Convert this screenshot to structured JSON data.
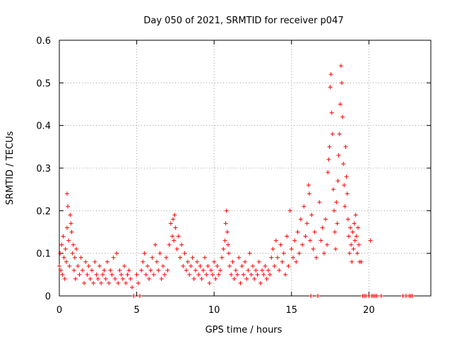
{
  "chart_data": {
    "type": "scatter",
    "title": "Day 050 of 2021, SRMTID for receiver p047",
    "xlabel": "GPS time / hours",
    "ylabel": "SRMTID / TECUs",
    "xlim": [
      0,
      24
    ],
    "ylim": [
      0,
      0.6
    ],
    "x_ticks": [
      0,
      5,
      10,
      15,
      20
    ],
    "y_ticks": [
      0,
      0.1,
      0.2,
      0.3,
      0.4,
      0.5,
      0.6
    ],
    "x_tick_labels": [
      "0",
      "5",
      "10",
      "15",
      "20"
    ],
    "y_tick_labels": [
      "0",
      "0.1",
      "0.2",
      "0.3",
      "0.4",
      "0.5",
      "0.6"
    ],
    "grid": true,
    "marker": "+",
    "color": "#ff0000",
    "series": [
      {
        "name": "SRMTID",
        "points": [
          [
            0.0,
            0.07
          ],
          [
            0.05,
            0.1
          ],
          [
            0.1,
            0.06
          ],
          [
            0.15,
            0.12
          ],
          [
            0.2,
            0.05
          ],
          [
            0.25,
            0.14
          ],
          [
            0.3,
            0.09
          ],
          [
            0.35,
            0.04
          ],
          [
            0.4,
            0.11
          ],
          [
            0.45,
            0.08
          ],
          [
            0.5,
            0.16
          ],
          [
            0.5,
            0.24
          ],
          [
            0.55,
            0.21
          ],
          [
            0.6,
            0.13
          ],
          [
            0.65,
            0.07
          ],
          [
            0.7,
            0.19
          ],
          [
            0.75,
            0.17
          ],
          [
            0.8,
            0.15
          ],
          [
            0.85,
            0.1
          ],
          [
            0.9,
            0.12
          ],
          [
            0.95,
            0.06
          ],
          [
            1.0,
            0.09
          ],
          [
            1.05,
            0.04
          ],
          [
            1.1,
            0.11
          ],
          [
            1.2,
            0.07
          ],
          [
            1.3,
            0.05
          ],
          [
            1.4,
            0.09
          ],
          [
            1.5,
            0.06
          ],
          [
            1.6,
            0.03
          ],
          [
            1.7,
            0.08
          ],
          [
            1.8,
            0.05
          ],
          [
            1.9,
            0.07
          ],
          [
            2.0,
            0.04
          ],
          [
            2.1,
            0.06
          ],
          [
            2.2,
            0.03
          ],
          [
            2.3,
            0.08
          ],
          [
            2.4,
            0.05
          ],
          [
            2.5,
            0.04
          ],
          [
            2.6,
            0.07
          ],
          [
            2.7,
            0.03
          ],
          [
            2.8,
            0.05
          ],
          [
            2.9,
            0.06
          ],
          [
            3.0,
            0.04
          ],
          [
            3.1,
            0.08
          ],
          [
            3.2,
            0.03
          ],
          [
            3.3,
            0.06
          ],
          [
            3.4,
            0.05
          ],
          [
            3.5,
            0.09
          ],
          [
            3.6,
            0.04
          ],
          [
            3.7,
            0.1
          ],
          [
            3.8,
            0.03
          ],
          [
            3.9,
            0.06
          ],
          [
            4.0,
            0.05
          ],
          [
            4.1,
            0.04
          ],
          [
            4.2,
            0.07
          ],
          [
            4.3,
            0.03
          ],
          [
            4.4,
            0.05
          ],
          [
            4.5,
            0.06
          ],
          [
            4.6,
            0.04
          ],
          [
            4.7,
            0.02
          ],
          [
            4.8,
            0.0
          ],
          [
            5.0,
            0.05
          ],
          [
            5.1,
            0.03
          ],
          [
            5.2,
            0.0
          ],
          [
            5.3,
            0.06
          ],
          [
            5.4,
            0.08
          ],
          [
            5.5,
            0.1
          ],
          [
            5.6,
            0.05
          ],
          [
            5.7,
            0.07
          ],
          [
            5.8,
            0.04
          ],
          [
            5.9,
            0.06
          ],
          [
            6.0,
            0.09
          ],
          [
            6.1,
            0.05
          ],
          [
            6.2,
            0.12
          ],
          [
            6.3,
            0.08
          ],
          [
            6.4,
            0.06
          ],
          [
            6.5,
            0.1
          ],
          [
            6.6,
            0.04
          ],
          [
            6.7,
            0.07
          ],
          [
            6.8,
            0.05
          ],
          [
            6.9,
            0.09
          ],
          [
            7.0,
            0.06
          ],
          [
            7.1,
            0.12
          ],
          [
            7.2,
            0.17
          ],
          [
            7.3,
            0.14
          ],
          [
            7.35,
            0.18
          ],
          [
            7.4,
            0.13
          ],
          [
            7.45,
            0.19
          ],
          [
            7.5,
            0.16
          ],
          [
            7.6,
            0.11
          ],
          [
            7.7,
            0.14
          ],
          [
            7.8,
            0.09
          ],
          [
            7.9,
            0.12
          ],
          [
            8.0,
            0.07
          ],
          [
            8.1,
            0.1
          ],
          [
            8.2,
            0.06
          ],
          [
            8.3,
            0.08
          ],
          [
            8.4,
            0.05
          ],
          [
            8.5,
            0.07
          ],
          [
            8.6,
            0.09
          ],
          [
            8.7,
            0.04
          ],
          [
            8.8,
            0.06
          ],
          [
            8.9,
            0.08
          ],
          [
            9.0,
            0.05
          ],
          [
            9.1,
            0.07
          ],
          [
            9.2,
            0.04
          ],
          [
            9.3,
            0.06
          ],
          [
            9.4,
            0.09
          ],
          [
            9.5,
            0.05
          ],
          [
            9.6,
            0.07
          ],
          [
            9.7,
            0.03
          ],
          [
            9.8,
            0.06
          ],
          [
            9.9,
            0.05
          ],
          [
            10.0,
            0.08
          ],
          [
            10.1,
            0.04
          ],
          [
            10.2,
            0.07
          ],
          [
            10.3,
            0.05
          ],
          [
            10.4,
            0.06
          ],
          [
            10.5,
            0.09
          ],
          [
            10.6,
            0.11
          ],
          [
            10.7,
            0.13
          ],
          [
            10.75,
            0.17
          ],
          [
            10.8,
            0.2
          ],
          [
            10.85,
            0.15
          ],
          [
            10.9,
            0.12
          ],
          [
            10.95,
            0.1
          ],
          [
            11.0,
            0.07
          ],
          [
            11.1,
            0.05
          ],
          [
            11.2,
            0.08
          ],
          [
            11.3,
            0.04
          ],
          [
            11.4,
            0.06
          ],
          [
            11.5,
            0.05
          ],
          [
            11.6,
            0.09
          ],
          [
            11.7,
            0.03
          ],
          [
            11.8,
            0.07
          ],
          [
            11.9,
            0.05
          ],
          [
            12.0,
            0.08
          ],
          [
            12.1,
            0.04
          ],
          [
            12.2,
            0.06
          ],
          [
            12.3,
            0.1
          ],
          [
            12.4,
            0.05
          ],
          [
            12.5,
            0.07
          ],
          [
            12.6,
            0.04
          ],
          [
            12.7,
            0.06
          ],
          [
            12.8,
            0.05
          ],
          [
            12.9,
            0.08
          ],
          [
            13.0,
            0.03
          ],
          [
            13.1,
            0.06
          ],
          [
            13.2,
            0.05
          ],
          [
            13.3,
            0.07
          ],
          [
            13.4,
            0.04
          ],
          [
            13.5,
            0.06
          ],
          [
            13.6,
            0.05
          ],
          [
            13.7,
            0.09
          ],
          [
            13.8,
            0.11
          ],
          [
            13.9,
            0.07
          ],
          [
            14.0,
            0.13
          ],
          [
            14.1,
            0.09
          ],
          [
            14.2,
            0.06
          ],
          [
            14.3,
            0.12
          ],
          [
            14.4,
            0.08
          ],
          [
            14.5,
            0.1
          ],
          [
            14.6,
            0.05
          ],
          [
            14.7,
            0.14
          ],
          [
            14.8,
            0.07
          ],
          [
            14.9,
            0.2
          ],
          [
            15.0,
            0.11
          ],
          [
            15.1,
            0.09
          ],
          [
            15.2,
            0.13
          ],
          [
            15.3,
            0.08
          ],
          [
            15.4,
            0.15
          ],
          [
            15.5,
            0.1
          ],
          [
            15.6,
            0.18
          ],
          [
            15.7,
            0.12
          ],
          [
            15.8,
            0.21
          ],
          [
            15.9,
            0.14
          ],
          [
            16.0,
            0.17
          ],
          [
            16.1,
            0.26
          ],
          [
            16.15,
            0.24
          ],
          [
            16.2,
            0.13
          ],
          [
            16.25,
            0.0
          ],
          [
            16.3,
            0.19
          ],
          [
            16.4,
            0.11
          ],
          [
            16.5,
            0.15
          ],
          [
            16.6,
            0.09
          ],
          [
            16.7,
            0.0
          ],
          [
            16.8,
            0.22
          ],
          [
            16.9,
            0.13
          ],
          [
            17.0,
            0.16
          ],
          [
            17.1,
            0.1
          ],
          [
            17.2,
            0.18
          ],
          [
            17.3,
            0.12
          ],
          [
            17.35,
            0.29
          ],
          [
            17.4,
            0.32
          ],
          [
            17.45,
            0.35
          ],
          [
            17.5,
            0.49
          ],
          [
            17.55,
            0.52
          ],
          [
            17.6,
            0.43
          ],
          [
            17.65,
            0.38
          ],
          [
            17.7,
            0.25
          ],
          [
            17.75,
            0.2
          ],
          [
            17.8,
            0.15
          ],
          [
            17.85,
            0.11
          ],
          [
            17.9,
            0.22
          ],
          [
            17.95,
            0.17
          ],
          [
            18.0,
            0.27
          ],
          [
            18.05,
            0.33
          ],
          [
            18.1,
            0.38
          ],
          [
            18.15,
            0.45
          ],
          [
            18.2,
            0.54
          ],
          [
            18.25,
            0.5
          ],
          [
            18.3,
            0.42
          ],
          [
            18.35,
            0.31
          ],
          [
            18.4,
            0.26
          ],
          [
            18.45,
            0.21
          ],
          [
            18.5,
            0.35
          ],
          [
            18.55,
            0.28
          ],
          [
            18.6,
            0.24
          ],
          [
            18.65,
            0.18
          ],
          [
            18.7,
            0.14
          ],
          [
            18.75,
            0.1
          ],
          [
            18.8,
            0.16
          ],
          [
            18.85,
            0.12
          ],
          [
            18.9,
            0.08
          ],
          [
            18.95,
            0.15
          ],
          [
            19.0,
            0.11
          ],
          [
            19.05,
            0.17
          ],
          [
            19.1,
            0.13
          ],
          [
            19.15,
            0.19
          ],
          [
            19.2,
            0.14
          ],
          [
            19.25,
            0.1
          ],
          [
            19.3,
            0.16
          ],
          [
            19.35,
            0.12
          ],
          [
            19.4,
            0.08
          ],
          [
            19.5,
            0.08
          ],
          [
            19.6,
            0.0
          ],
          [
            19.7,
            0.0
          ],
          [
            19.8,
            0.0
          ],
          [
            20.0,
            0.0
          ],
          [
            20.1,
            0.13
          ],
          [
            20.2,
            0.0
          ],
          [
            20.3,
            0.0
          ],
          [
            20.4,
            0.0
          ],
          [
            20.5,
            0.0
          ],
          [
            20.8,
            0.0
          ],
          [
            22.2,
            0.0
          ],
          [
            22.4,
            0.0
          ],
          [
            22.6,
            0.0
          ],
          [
            22.7,
            0.0
          ],
          [
            22.8,
            0.0
          ]
        ]
      }
    ]
  }
}
